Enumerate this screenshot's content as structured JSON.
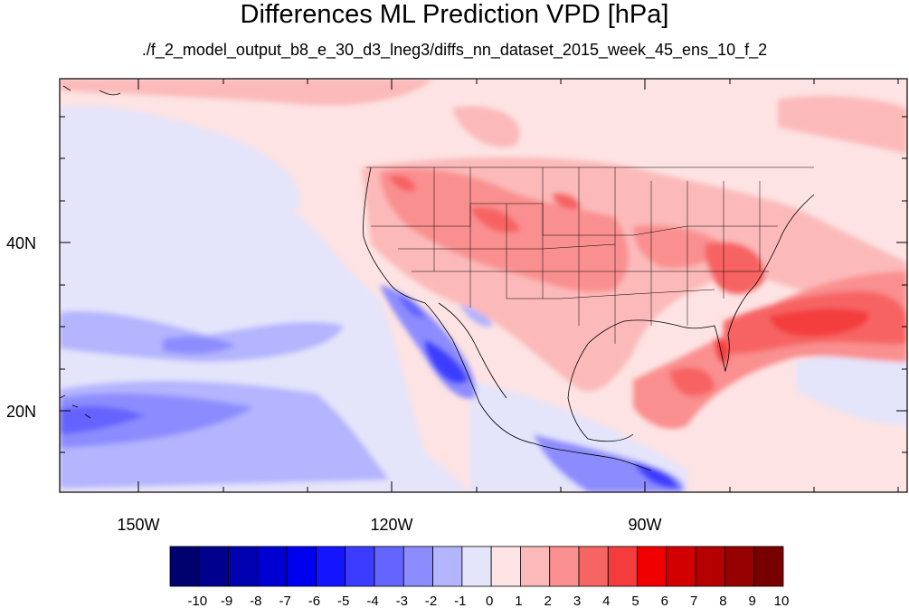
{
  "title": "Differences ML Prediction VPD [hPa]",
  "subtitle": "./f_2_model_output_b8_e_30_d3_lneg3/diffs_nn_dataset_2015_week_45_ens_10_f_2",
  "map": {
    "lon_labels": [
      "150W",
      "120W",
      "90W"
    ],
    "lat_labels": [
      "40N",
      "20N"
    ]
  },
  "colorbar": {
    "labels": [
      "-10",
      "-9",
      "-8",
      "-7",
      "-6",
      "-5",
      "-4",
      "-3",
      "-2",
      "-1",
      "0",
      "1",
      "2",
      "3",
      "4",
      "5",
      "6",
      "7",
      "8",
      "9",
      "10"
    ],
    "colors": [
      "#00006e",
      "#00008f",
      "#0000b0",
      "#0000d2",
      "#0000f0",
      "#1414ff",
      "#3c3cff",
      "#6464ff",
      "#8c8cff",
      "#b4b4ff",
      "#e4e4fb",
      "#fde3e3",
      "#fcb9b9",
      "#fa8f8f",
      "#f76464",
      "#f43c3c",
      "#f00000",
      "#d20000",
      "#b40000",
      "#960000",
      "#780000"
    ]
  }
}
